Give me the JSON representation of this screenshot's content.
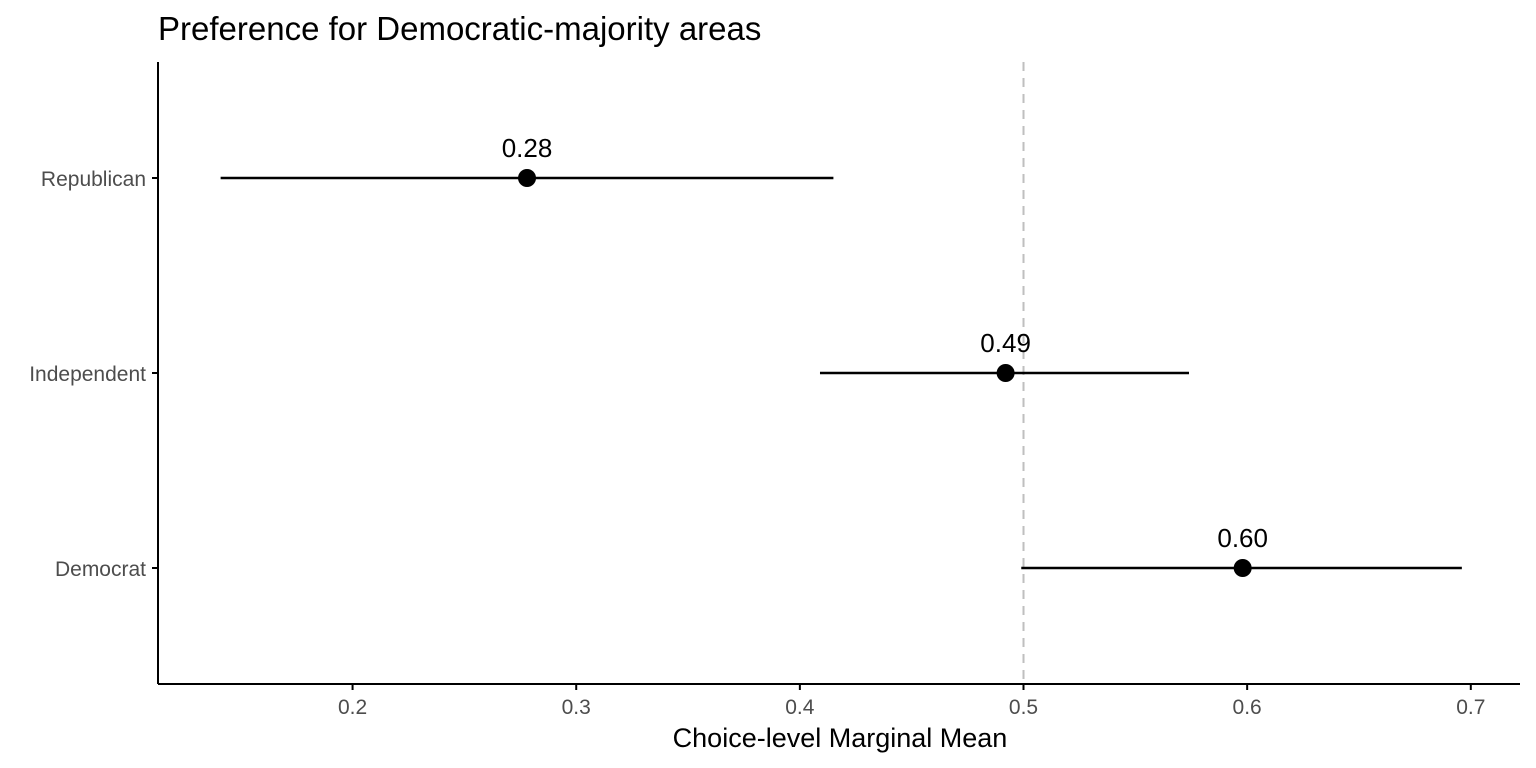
{
  "chart_data": {
    "type": "scatter",
    "title": "Preference for Democratic-majority areas",
    "xlabel": "Choice-level Marginal Mean",
    "ylabel": "",
    "xlim": [
      0.113,
      0.722
    ],
    "xticks": [
      0.2,
      0.3,
      0.4,
      0.5,
      0.6,
      0.7
    ],
    "xtick_labels": [
      "0.2",
      "0.3",
      "0.4",
      "0.5",
      "0.6",
      "0.7"
    ],
    "reference_line": 0.5,
    "grid": false,
    "categories": [
      "Republican",
      "Independent",
      "Democrat"
    ],
    "points": [
      {
        "category": "Republican",
        "estimate": 0.278,
        "lower": 0.141,
        "upper": 0.415,
        "label": "0.28"
      },
      {
        "category": "Independent",
        "estimate": 0.492,
        "lower": 0.409,
        "upper": 0.574,
        "label": "0.49"
      },
      {
        "category": "Democrat",
        "estimate": 0.598,
        "lower": 0.499,
        "upper": 0.696,
        "label": "0.60"
      }
    ],
    "colors": {
      "point": "#000000",
      "reference_line": "#bfbfbf",
      "axis": "#000000",
      "tick_label": "#4d4d4d"
    }
  }
}
